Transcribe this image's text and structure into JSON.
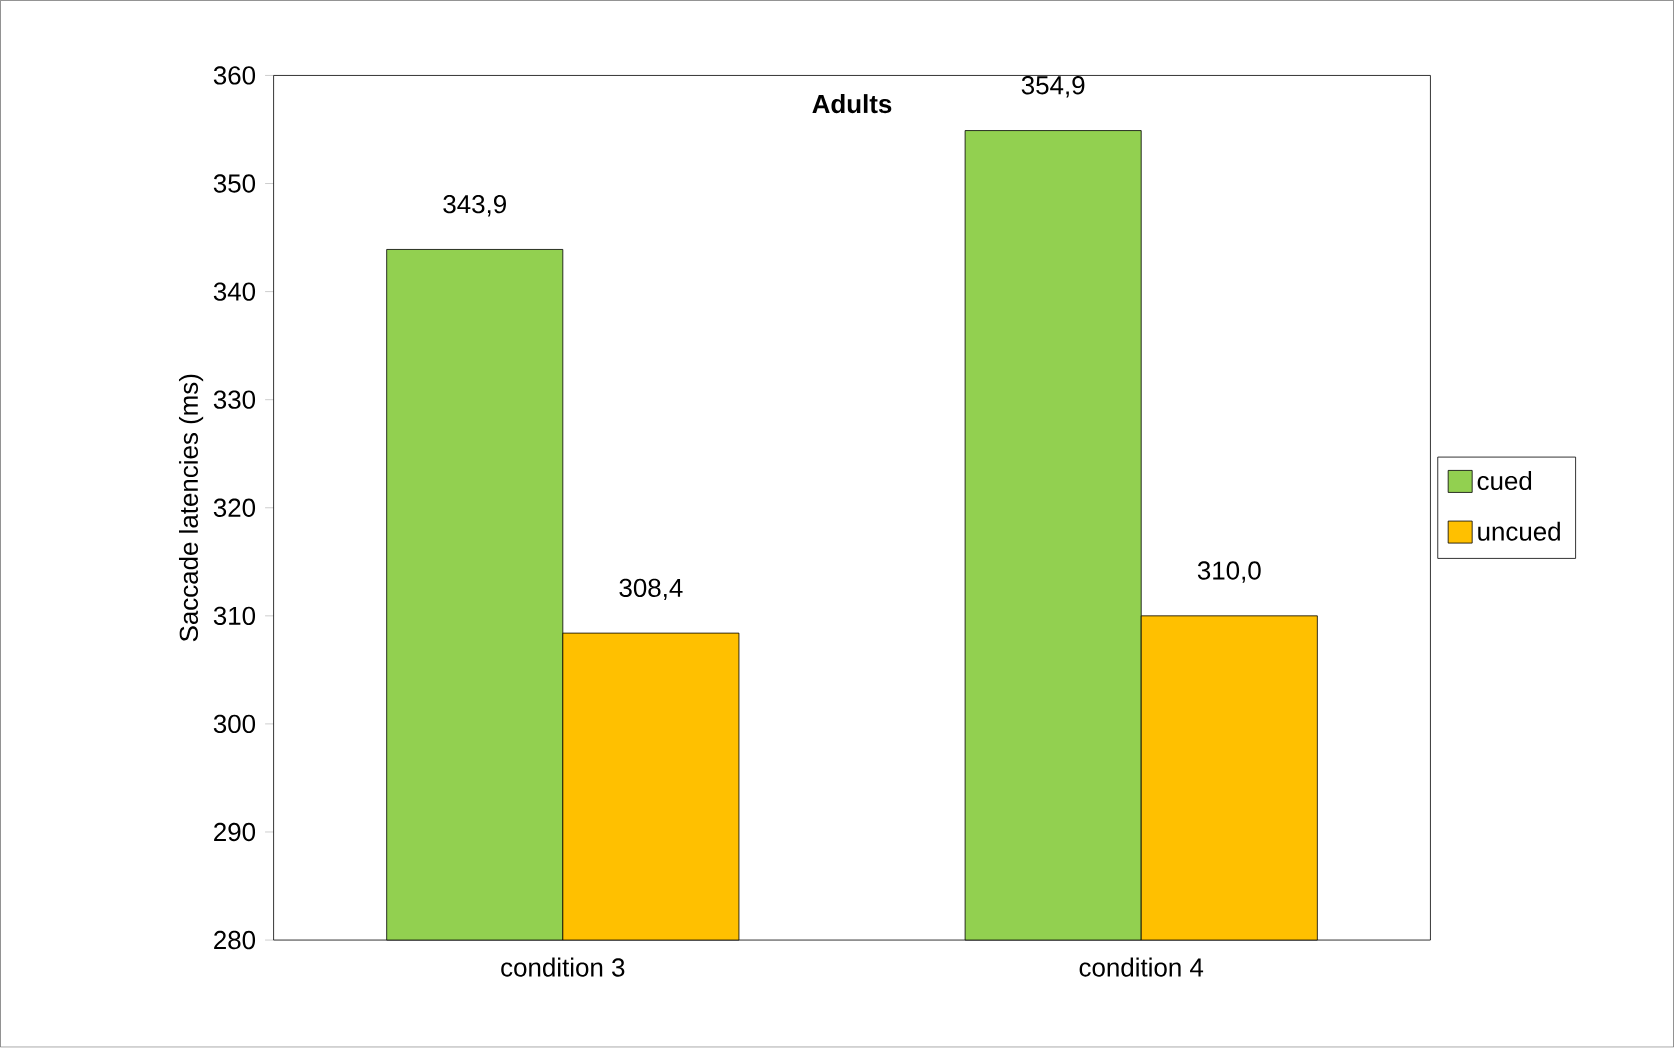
{
  "chart_data": {
    "type": "bar",
    "title": "Adults",
    "ylabel": "Saccade latencies (ms)",
    "categories": [
      "condition 3",
      "condition 4"
    ],
    "series": [
      {
        "name": "cued",
        "color": "#92d050",
        "values": [
          343.9,
          354.9
        ],
        "value_labels": [
          "343,9",
          "354,9"
        ]
      },
      {
        "name": "uncued",
        "color": "#ffc000",
        "values": [
          308.4,
          310.0
        ],
        "value_labels": [
          "308,4",
          "310,0"
        ]
      }
    ],
    "ylim": [
      280,
      360
    ],
    "yticks": [
      280,
      290,
      300,
      310,
      320,
      330,
      340,
      350,
      360
    ],
    "grid": false,
    "legend": "right"
  }
}
